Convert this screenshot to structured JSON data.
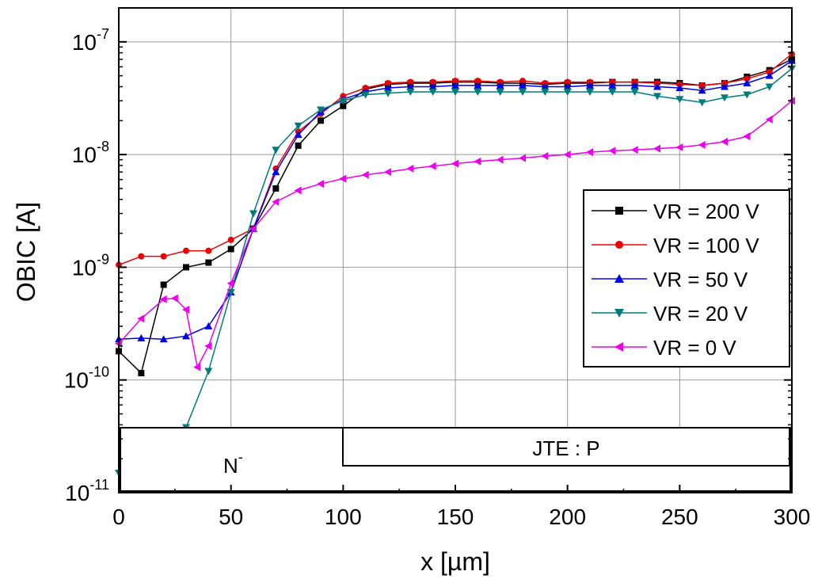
{
  "chart_data": {
    "type": "line",
    "xlabel": "x [µm]",
    "ylabel": "OBIC [A]",
    "xlim": [
      0,
      300
    ],
    "ylim": [
      1e-11,
      2e-07
    ],
    "yscale": "log",
    "grid": true,
    "legend_position": "right",
    "x_ticks": [
      0,
      50,
      100,
      150,
      200,
      250,
      300
    ],
    "x_tick_labels": [
      "0",
      "50",
      "100",
      "150",
      "200",
      "250",
      "300"
    ],
    "y_ticks": [
      {
        "value": 1e-11,
        "base": "10",
        "exp": "-11"
      },
      {
        "value": 1e-10,
        "base": "10",
        "exp": "-10"
      },
      {
        "value": 1e-09,
        "base": "10",
        "exp": "-9"
      },
      {
        "value": 1e-08,
        "base": "10",
        "exp": "-8"
      },
      {
        "value": 1e-07,
        "base": "10",
        "exp": "-7"
      }
    ],
    "series": [
      {
        "name": "VR = 200 V",
        "color": "#000000",
        "marker": "square",
        "x": [
          0,
          10,
          20,
          30,
          40,
          50,
          60,
          70,
          80,
          90,
          100,
          110,
          120,
          130,
          140,
          150,
          160,
          170,
          180,
          190,
          200,
          210,
          220,
          230,
          240,
          250,
          260,
          270,
          280,
          290,
          300
        ],
        "y": [
          1.8e-10,
          1.15e-10,
          7e-10,
          1e-09,
          1.1e-09,
          1.45e-09,
          2.2e-09,
          5e-09,
          1.2e-08,
          2e-08,
          2.7e-08,
          3.8e-08,
          4.2e-08,
          4.3e-08,
          4.3e-08,
          4.4e-08,
          4.4e-08,
          4.3e-08,
          4.3e-08,
          4.2e-08,
          4.3e-08,
          4.3e-08,
          4.4e-08,
          4.4e-08,
          4.4e-08,
          4.3e-08,
          4.1e-08,
          4.3e-08,
          4.9e-08,
          5.6e-08,
          7e-08
        ]
      },
      {
        "name": "VR = 100 V",
        "color": "#ee0000",
        "marker": "circle",
        "x": [
          0,
          10,
          20,
          30,
          40,
          50,
          60,
          70,
          80,
          90,
          100,
          110,
          120,
          130,
          140,
          150,
          160,
          170,
          180,
          190,
          200,
          210,
          220,
          230,
          240,
          250,
          260,
          270,
          280,
          290,
          300
        ],
        "y": [
          1.05e-09,
          1.25e-09,
          1.25e-09,
          1.4e-09,
          1.4e-09,
          1.75e-09,
          2.2e-09,
          7.5e-09,
          1.6e-08,
          2.3e-08,
          3.3e-08,
          3.9e-08,
          4.3e-08,
          4.4e-08,
          4.4e-08,
          4.5e-08,
          4.5e-08,
          4.4e-08,
          4.5e-08,
          4.3e-08,
          4.4e-08,
          4.4e-08,
          4.4e-08,
          4.4e-08,
          4.3e-08,
          4.2e-08,
          4.1e-08,
          4.3e-08,
          4.7e-08,
          5.4e-08,
          7.8e-08
        ]
      },
      {
        "name": "VR  = 50 V",
        "color": "#0000ee",
        "marker": "triangle-up",
        "x": [
          0,
          10,
          20,
          30,
          40,
          50,
          60,
          70,
          80,
          90,
          100,
          110,
          120,
          130,
          140,
          150,
          160,
          170,
          180,
          190,
          200,
          210,
          220,
          230,
          240,
          250,
          260,
          270,
          280,
          290,
          300
        ],
        "y": [
          2.3e-10,
          2.35e-10,
          2.3e-10,
          2.45e-10,
          3e-10,
          6e-10,
          2.2e-09,
          7e-09,
          1.5e-08,
          2.4e-08,
          3.1e-08,
          3.6e-08,
          3.9e-08,
          4e-08,
          4e-08,
          4.1e-08,
          4.1e-08,
          4.1e-08,
          4.1e-08,
          4e-08,
          4e-08,
          4.1e-08,
          4.1e-08,
          4.1e-08,
          4e-08,
          3.9e-08,
          3.7e-08,
          4e-08,
          4.3e-08,
          5e-08,
          6.8e-08
        ]
      },
      {
        "name": "VR = 20 V",
        "color": "#007b7b",
        "marker": "triangle-down",
        "x": [
          0,
          10,
          20,
          30,
          40,
          50,
          60,
          70,
          80,
          90,
          100,
          110,
          120,
          130,
          140,
          150,
          160,
          170,
          180,
          190,
          200,
          210,
          220,
          230,
          240,
          250,
          260,
          270,
          280,
          290,
          300
        ],
        "y": [
          1.5e-11,
          1.8e-11,
          2.5e-11,
          3.8e-11,
          1.2e-10,
          6e-10,
          3e-09,
          1.1e-08,
          1.8e-08,
          2.5e-08,
          3e-08,
          3.4e-08,
          3.5e-08,
          3.6e-08,
          3.6e-08,
          3.6e-08,
          3.6e-08,
          3.6e-08,
          3.6e-08,
          3.6e-08,
          3.6e-08,
          3.6e-08,
          3.6e-08,
          3.6e-08,
          3.3e-08,
          3.1e-08,
          2.9e-08,
          3.2e-08,
          3.4e-08,
          4e-08,
          5.8e-08
        ]
      },
      {
        "name": "VR = 0 V",
        "color": "#ee00ee",
        "marker": "triangle-left",
        "x": [
          0,
          10,
          20,
          25,
          30,
          35,
          40,
          50,
          60,
          70,
          80,
          90,
          100,
          110,
          120,
          130,
          140,
          150,
          160,
          170,
          180,
          190,
          200,
          210,
          220,
          230,
          240,
          250,
          260,
          270,
          280,
          290,
          300
        ],
        "y": [
          2.1e-10,
          3.5e-10,
          5.2e-10,
          5.3e-10,
          4.2e-10,
          1.3e-10,
          2e-10,
          7.2e-10,
          2.2e-09,
          3.8e-09,
          4.8e-09,
          5.5e-09,
          6.1e-09,
          6.6e-09,
          7e-09,
          7.5e-09,
          7.9e-09,
          8.3e-09,
          8.7e-09,
          9e-09,
          9.3e-09,
          9.7e-09,
          1e-08,
          1.05e-08,
          1.08e-08,
          1.1e-08,
          1.13e-08,
          1.16e-08,
          1.22e-08,
          1.3e-08,
          1.45e-08,
          2.05e-08,
          3e-08
        ]
      }
    ],
    "annotations": {
      "region_n": {
        "text": "N",
        "sup": "-",
        "x_start": 0,
        "x_end": 100
      },
      "region_jte": {
        "text": "JTE : P",
        "x_start": 100,
        "x_end": 300
      }
    }
  }
}
